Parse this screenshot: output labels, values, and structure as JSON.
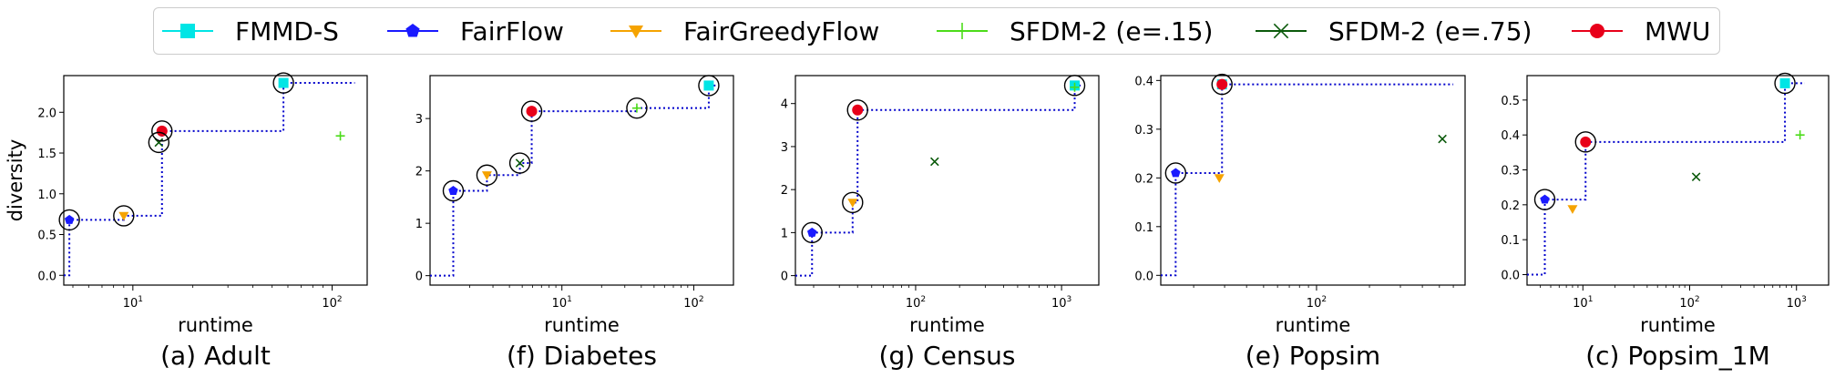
{
  "colors": {
    "FMMD-S": "#00e5e5",
    "FairFlow": "#1a1aff",
    "FairGreedyFlow": "#f5a300",
    "SFDM-2 (e=.15)": "#4cdc1a",
    "SFDM-2 (e=.75)": "#0b5a0b",
    "MWU": "#e8001a",
    "frontier": "#0000cc"
  },
  "legend": [
    {
      "name": "FMMD-S",
      "marker": "square"
    },
    {
      "name": "FairFlow",
      "marker": "pentagon"
    },
    {
      "name": "FairGreedyFlow",
      "marker": "triangle-down"
    },
    {
      "name": "SFDM-2 (e=.15)",
      "marker": "plus"
    },
    {
      "name": "SFDM-2 (e=.75)",
      "marker": "x"
    },
    {
      "name": "MWU",
      "marker": "circle"
    }
  ],
  "shared": {
    "ylabel": "diversity",
    "xlabel": "runtime"
  },
  "chart_data": [
    {
      "type": "scatter",
      "title": "(a) Adult",
      "xlabel": "runtime",
      "ylabel": "diversity",
      "xscale": "log",
      "xlim": [
        4.5,
        150
      ],
      "ylim": [
        -0.12,
        2.45
      ],
      "xticks": [
        {
          "v": 10,
          "label": "10^1"
        },
        {
          "v": 100,
          "label": "10^2"
        }
      ],
      "yticks": [
        {
          "v": 0,
          "label": "0.0"
        },
        {
          "v": 0.5,
          "label": "0.5"
        },
        {
          "v": 1.0,
          "label": "1.0"
        },
        {
          "v": 1.5,
          "label": "1.5"
        },
        {
          "v": 2.0,
          "label": "2.0"
        }
      ],
      "series": [
        {
          "name": "FMMD-S",
          "points": [
            [
              57.0,
              2.36
            ]
          ]
        },
        {
          "name": "FairFlow",
          "points": [
            [
              4.8,
              0.68
            ]
          ]
        },
        {
          "name": "FairGreedyFlow",
          "points": [
            [
              9.0,
              0.73
            ]
          ]
        },
        {
          "name": "SFDM-2 (e=.15)",
          "points": [
            [
              110,
              1.71
            ]
          ]
        },
        {
          "name": "SFDM-2 (e=.75)",
          "points": [
            [
              13.5,
              1.63
            ]
          ]
        },
        {
          "name": "MWU",
          "points": [
            [
              14.0,
              1.77
            ]
          ]
        }
      ],
      "highlighted": [
        [
          4.8,
          0.68
        ],
        [
          9.0,
          0.73
        ],
        [
          13.5,
          1.63
        ],
        [
          14.0,
          1.77
        ],
        [
          57.0,
          2.36
        ]
      ],
      "frontier": [
        [
          4.5,
          0
        ],
        [
          4.8,
          0
        ],
        [
          4.8,
          0.68
        ],
        [
          9.0,
          0.68
        ],
        [
          9.0,
          0.73
        ],
        [
          14.0,
          0.73
        ],
        [
          14.0,
          1.77
        ],
        [
          57.0,
          1.77
        ],
        [
          57.0,
          2.36
        ],
        [
          130,
          2.36
        ]
      ]
    },
    {
      "type": "scatter",
      "title": "(f) Diabetes",
      "xlabel": "runtime",
      "ylabel": "",
      "xscale": "log",
      "xlim": [
        1.0,
        200
      ],
      "ylim": [
        -0.18,
        3.82
      ],
      "xticks": [
        {
          "v": 10,
          "label": "10^1"
        },
        {
          "v": 100,
          "label": "10^2"
        }
      ],
      "yticks": [
        {
          "v": 0,
          "label": "0"
        },
        {
          "v": 1,
          "label": "1"
        },
        {
          "v": 2,
          "label": "2"
        },
        {
          "v": 3,
          "label": "3"
        }
      ],
      "series": [
        {
          "name": "FMMD-S",
          "points": [
            [
              130,
              3.63
            ]
          ]
        },
        {
          "name": "FairFlow",
          "points": [
            [
              1.5,
              1.62
            ]
          ]
        },
        {
          "name": "FairGreedyFlow",
          "points": [
            [
              2.7,
              1.92
            ]
          ]
        },
        {
          "name": "SFDM-2 (e=.15)",
          "points": [
            [
              37,
              3.2
            ]
          ]
        },
        {
          "name": "SFDM-2 (e=.75)",
          "points": [
            [
              4.8,
              2.15
            ]
          ]
        },
        {
          "name": "MWU",
          "points": [
            [
              5.9,
              3.14
            ]
          ]
        }
      ],
      "highlighted": [
        [
          1.5,
          1.62
        ],
        [
          2.7,
          1.92
        ],
        [
          4.8,
          2.15
        ],
        [
          5.9,
          3.14
        ],
        [
          37,
          3.2
        ],
        [
          130,
          3.63
        ]
      ],
      "frontier": [
        [
          1.0,
          0
        ],
        [
          1.5,
          0
        ],
        [
          1.5,
          1.62
        ],
        [
          2.7,
          1.62
        ],
        [
          2.7,
          1.92
        ],
        [
          4.8,
          1.92
        ],
        [
          4.8,
          2.15
        ],
        [
          5.9,
          2.15
        ],
        [
          5.9,
          3.14
        ],
        [
          37,
          3.14
        ],
        [
          37,
          3.2
        ],
        [
          130,
          3.2
        ],
        [
          130,
          3.63
        ],
        [
          150,
          3.63
        ]
      ]
    },
    {
      "type": "scatter",
      "title": "(g) Census",
      "xlabel": "runtime",
      "ylabel": "",
      "xscale": "log",
      "xlim": [
        15,
        1800
      ],
      "ylim": [
        -0.22,
        4.65
      ],
      "xticks": [
        {
          "v": 100,
          "label": "10^2"
        },
        {
          "v": 1000,
          "label": "10^3"
        }
      ],
      "yticks": [
        {
          "v": 0,
          "label": "0"
        },
        {
          "v": 1,
          "label": "1"
        },
        {
          "v": 2,
          "label": "2"
        },
        {
          "v": 3,
          "label": "3"
        },
        {
          "v": 4,
          "label": "4"
        }
      ],
      "series": [
        {
          "name": "FMMD-S",
          "points": [
            [
              1230,
              4.42
            ]
          ]
        },
        {
          "name": "FairFlow",
          "points": [
            [
              19.5,
              1.0
            ]
          ]
        },
        {
          "name": "FairGreedyFlow",
          "points": [
            [
              37,
              1.7
            ]
          ]
        },
        {
          "name": "SFDM-2 (e=.15)",
          "points": [
            [
              1230,
              4.38
            ]
          ]
        },
        {
          "name": "SFDM-2 (e=.75)",
          "points": [
            [
              135,
              2.65
            ]
          ]
        },
        {
          "name": "MWU",
          "points": [
            [
              40,
              3.85
            ]
          ]
        }
      ],
      "highlighted": [
        [
          19.5,
          1.0
        ],
        [
          37,
          1.7
        ],
        [
          40,
          3.85
        ],
        [
          1230,
          4.42
        ]
      ],
      "frontier": [
        [
          15,
          0
        ],
        [
          19.5,
          0
        ],
        [
          19.5,
          1.0
        ],
        [
          37,
          1.0
        ],
        [
          37,
          1.7
        ],
        [
          40,
          1.7
        ],
        [
          40,
          3.85
        ],
        [
          1230,
          3.85
        ],
        [
          1230,
          4.42
        ],
        [
          1350,
          4.42
        ]
      ]
    },
    {
      "type": "scatter",
      "title": "(e) Popsim",
      "xlabel": "runtime",
      "ylabel": "",
      "xscale": "log",
      "xlim": [
        13,
        700
      ],
      "ylim": [
        -0.02,
        0.41
      ],
      "xticks": [
        {
          "v": 100,
          "label": "10^2"
        }
      ],
      "yticks": [
        {
          "v": 0,
          "label": "0.0"
        },
        {
          "v": 0.1,
          "label": "0.1"
        },
        {
          "v": 0.2,
          "label": "0.2"
        },
        {
          "v": 0.3,
          "label": "0.3"
        },
        {
          "v": 0.4,
          "label": "0.4"
        }
      ],
      "series": [
        {
          "name": "FMMD-S",
          "points": [
            [
              29,
              0.392
            ]
          ]
        },
        {
          "name": "FairFlow",
          "points": [
            [
              15.8,
              0.21
            ]
          ]
        },
        {
          "name": "FairGreedyFlow",
          "points": [
            [
              28,
              0.2
            ]
          ]
        },
        {
          "name": "SFDM-2 (e=.15)",
          "points": [
            [
              29,
              0.39
            ]
          ]
        },
        {
          "name": "SFDM-2 (e=.75)",
          "points": [
            [
              520,
              0.28
            ]
          ]
        },
        {
          "name": "MWU",
          "points": [
            [
              29,
              0.392
            ]
          ]
        }
      ],
      "highlighted": [
        [
          15.8,
          0.21
        ],
        [
          29,
          0.392
        ]
      ],
      "frontier": [
        [
          13,
          0
        ],
        [
          15.8,
          0
        ],
        [
          15.8,
          0.21
        ],
        [
          29,
          0.21
        ],
        [
          29,
          0.392
        ],
        [
          600,
          0.392
        ]
      ]
    },
    {
      "type": "scatter",
      "title": "(c) Popsim_1M",
      "xlabel": "runtime",
      "ylabel": "",
      "xscale": "log",
      "xlim": [
        3.0,
        2000
      ],
      "ylim": [
        -0.03,
        0.57
      ],
      "xticks": [
        {
          "v": 10,
          "label": "10^1"
        },
        {
          "v": 100,
          "label": "10^2"
        },
        {
          "v": 1000,
          "label": "10^3"
        }
      ],
      "yticks": [
        {
          "v": 0,
          "label": "0.0"
        },
        {
          "v": 0.1,
          "label": "0.1"
        },
        {
          "v": 0.2,
          "label": "0.2"
        },
        {
          "v": 0.3,
          "label": "0.3"
        },
        {
          "v": 0.4,
          "label": "0.4"
        },
        {
          "v": 0.5,
          "label": "0.5"
        }
      ],
      "series": [
        {
          "name": "FMMD-S",
          "points": [
            [
              780,
              0.548
            ]
          ]
        },
        {
          "name": "FairFlow",
          "points": [
            [
              4.4,
              0.215
            ]
          ]
        },
        {
          "name": "FairGreedyFlow",
          "points": [
            [
              8.0,
              0.188
            ]
          ]
        },
        {
          "name": "SFDM-2 (e=.15)",
          "points": [
            [
              1080,
              0.4
            ]
          ]
        },
        {
          "name": "SFDM-2 (e=.75)",
          "points": [
            [
              115,
              0.28
            ]
          ]
        },
        {
          "name": "MWU",
          "points": [
            [
              10.6,
              0.38
            ]
          ]
        }
      ],
      "highlighted": [
        [
          4.4,
          0.215
        ],
        [
          10.6,
          0.38
        ],
        [
          780,
          0.548
        ]
      ],
      "frontier": [
        [
          3.0,
          0
        ],
        [
          4.4,
          0
        ],
        [
          4.4,
          0.215
        ],
        [
          10.6,
          0.215
        ],
        [
          10.6,
          0.38
        ],
        [
          780,
          0.38
        ],
        [
          780,
          0.548
        ],
        [
          1200,
          0.548
        ]
      ]
    }
  ]
}
